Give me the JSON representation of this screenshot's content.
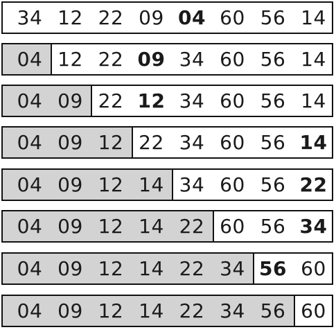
{
  "rows": [
    {
      "values": [
        "34",
        "12",
        "22",
        "09",
        "04",
        "60",
        "56",
        "14"
      ],
      "sorted_count": 0,
      "highlight_index": 4
    },
    {
      "values": [
        "04",
        "12",
        "22",
        "09",
        "34",
        "60",
        "56",
        "14"
      ],
      "sorted_count": 1,
      "highlight_index": 3
    },
    {
      "values": [
        "04",
        "09",
        "22",
        "12",
        "34",
        "60",
        "56",
        "14"
      ],
      "sorted_count": 2,
      "highlight_index": 3
    },
    {
      "values": [
        "04",
        "09",
        "12",
        "22",
        "34",
        "60",
        "56",
        "14"
      ],
      "sorted_count": 3,
      "highlight_index": 7
    },
    {
      "values": [
        "04",
        "09",
        "12",
        "14",
        "34",
        "60",
        "56",
        "22"
      ],
      "sorted_count": 4,
      "highlight_index": 7
    },
    {
      "values": [
        "04",
        "09",
        "12",
        "14",
        "22",
        "60",
        "56",
        "34"
      ],
      "sorted_count": 5,
      "highlight_index": 7
    },
    {
      "values": [
        "04",
        "09",
        "12",
        "14",
        "22",
        "34",
        "56",
        "60"
      ],
      "sorted_count": 6,
      "highlight_index": 6
    },
    {
      "values": [
        "04",
        "09",
        "12",
        "14",
        "22",
        "34",
        "56",
        "60"
      ],
      "sorted_count": 7,
      "highlight_index": -1
    }
  ],
  "colors": {
    "sorted_fill": "#d3d3d3",
    "border": "#111111",
    "text": "#1a1a1a"
  }
}
